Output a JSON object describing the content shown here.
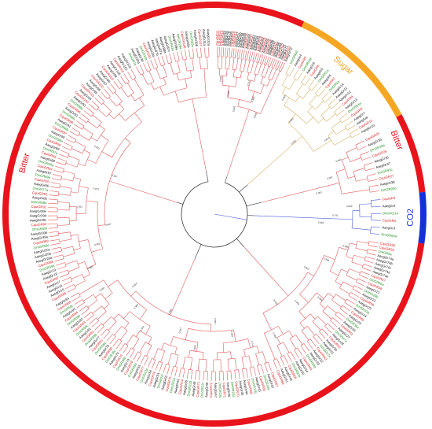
{
  "colors": {
    "bitter": "#e8131b",
    "sugar": "#f5a623",
    "co2": "#1430d8",
    "aedes": "#111111",
    "culex": "#d7191c",
    "drosophila": "#1f8f1f",
    "branch_red": "#e25b5b",
    "branch_sugar": "#d9b36a",
    "branch_co2": "#4a5bd8",
    "branch_dark": "#333333"
  },
  "clades": [
    {
      "name": "Sugar",
      "start": -65,
      "end": -28,
      "color": "#f5a623"
    },
    {
      "name": "Bitter",
      "start": -28,
      "end": -6,
      "color": "#e8131b"
    },
    {
      "name": "CO2",
      "start": -6,
      "end": 8,
      "color": "#1430d8"
    },
    {
      "name": "Bitter",
      "start": 8,
      "end": 295,
      "color": "#e8131b"
    }
  ],
  "leaf_groups": [
    {
      "from": -89,
      "to": -65,
      "count": 34,
      "items": [
        "CquiGR11",
        "CquiGR12",
        "CquiGR13",
        "AaegGr29",
        "AaegGr78",
        "AaegGr79",
        "AaegGr80",
        "CquiGR14",
        "CquiGR15",
        "AaegGr57",
        "AaegGr56",
        "AaegGr58",
        "AaegGr59",
        "CquiGR16",
        "AaegGr60",
        "CquiGR17",
        "AaegGr61",
        "AaegGr62",
        "AaegGr63",
        "CquiGR18",
        "AaegGr64",
        "CquiGR19",
        "AaegGr65",
        "CquiGR20",
        "AaegGr66",
        "AaegGr67",
        "CquiGR21",
        "AaegGr68",
        "AaegGr69",
        "CquiGR22",
        "AaegGr70",
        "AaegGr71",
        "CquiGR23",
        "AaegGr72"
      ]
    },
    {
      "from": -63,
      "to": -29,
      "count": 22,
      "items": [
        "DmGR64f",
        "AaegGr4",
        "CquiGR5",
        "DmGR64e",
        "AaegGr9",
        "CquiGR6",
        "AaegGr5",
        "DmGR61a",
        "AaegGr6",
        "CquiGR7",
        "DmGR5a",
        "AaegGr14",
        "AaegGr11",
        "AaegGr12",
        "CquiGR8",
        "AaegGr13",
        "DmGR64a",
        "CquiGR9",
        "AaegGr7",
        "AaegGr8",
        "CquiGR10",
        "AaegGr10"
      ]
    },
    {
      "from": -26,
      "to": -8,
      "count": 10,
      "items": [
        "CquiGR25",
        "AaegGr35",
        "DmGR39a",
        "CquiGR26",
        "AaegGr36",
        "AaegGr37",
        "DmGR93c",
        "CquiGR27",
        "AaegGr38",
        "DmGR93d"
      ]
    },
    {
      "from": -5,
      "to": 7,
      "count": 6,
      "items": [
        "CquiGR2",
        "AaegGr2",
        "DmGR21a",
        "CquiGR3",
        "AaegGr3",
        "DmGR63a"
      ]
    },
    {
      "from": 10,
      "to": 68,
      "count": 42,
      "items": [
        "CquiGR55",
        "CquiGR56",
        "DmGR8a",
        "AaegGr74a",
        "AaegGr74b",
        "AaegGr74c",
        "AaegGr74d",
        "AaegGr74e",
        "CquiGR57",
        "DmGR66a",
        "CquiGR58",
        "AaegGr21",
        "DmGR28b",
        "AaegGr22",
        "CquiGR59",
        "AaegGr23",
        "DmGR33a",
        "AaegGr24",
        "CquiGR60",
        "AaegGr25",
        "DmGR36a",
        "AaegGr26",
        "CquiGR61",
        "AaegGr27",
        "DmGR47a",
        "AaegGr28",
        "CquiGR62",
        "AaegGr30",
        "AaegGr31",
        "DmGR57a",
        "CquiGR63",
        "AaegGr32",
        "AaegGr33",
        "DmGR59a",
        "CquiGR64",
        "AaegGr34",
        "AaegGr39",
        "DmGR92a",
        "CquiGR65",
        "AaegGr40",
        "AaegGr41",
        "CquiGR66"
      ]
    },
    {
      "from": 70,
      "to": 150,
      "count": 58,
      "items": [
        "CquiGR67",
        "AaegGr42",
        "DmGR10a",
        "CquiGR68",
        "AaegGr43",
        "DmGR10b",
        "CquiGR69",
        "AaegGr44",
        "AaegGr45",
        "CquiGR70",
        "DmGR22a",
        "AaegGr46",
        "CquiGR71",
        "DmGR22b",
        "AaegGr47",
        "CquiGR72",
        "AaegGr48",
        "DmGR22c",
        "CquiGR73",
        "AaegGr49",
        "DmGR22d",
        "AaegGr50",
        "CquiGR74",
        "AaegGr51",
        "DmGR22e",
        "CquiGR75",
        "AaegGr52",
        "DmGR22f",
        "AaegGr53",
        "CquiGR76",
        "AaegGr54",
        "DmGR23a",
        "CquiGR77",
        "AaegGr55",
        "DmGR28a",
        "CquiGR78",
        "AaegGr73",
        "DmGR36b",
        "CquiGR79",
        "AaegGr75",
        "DmGR36c",
        "CquiGR80",
        "AaegGr76",
        "DmGR58a",
        "CquiGR81",
        "AaegGr77",
        "DmGR58b",
        "CquiGR82",
        "AaegGr81",
        "DmGR58c",
        "CquiGR83",
        "AaegGr82",
        "DmGR59b",
        "CquiGR84",
        "AaegGr83",
        "DmGR59c",
        "CquiGR85",
        "AaegGr84"
      ]
    },
    {
      "from": 152,
      "to": 240,
      "count": 62,
      "items": [
        "CquiGR86",
        "AaegGr15",
        "AaegGr16",
        "AaegGr17",
        "CquiGR87",
        "AaegGr18",
        "AaegGr19",
        "DmGR59d",
        "CquiGR88",
        "AaegGr20a",
        "AaegGr20b",
        "AaegGr20c",
        "DmGR59e",
        "CquiGR89",
        "AaegGr39a",
        "AaegGr39b",
        "DmGR59f",
        "CquiGR90",
        "AaegGr39c",
        "AaegGr39d",
        "AaegGr39e",
        "CquiGR91",
        "DmGR68a",
        "AaegGr85",
        "CquiGR92",
        "DmGR77a",
        "AaegGr86",
        "CquiGR93",
        "DmGR89a",
        "AaegGr87",
        "CquiGR94",
        "DmGR94a",
        "AaegGr88",
        "CquiGR95",
        "DmGR97a",
        "AaegGr89",
        "CquiGR96",
        "DmGR98a",
        "AaegGr90",
        "CquiGR97",
        "DmGR98b",
        "AaegGr91",
        "CquiGR98",
        "DmGR98c",
        "AaegGr92",
        "CquiGR99",
        "DmGR98d",
        "AaegGr93",
        "CquiGR100",
        "AaegGr94",
        "CquiGR101",
        "AaegGr95",
        "AaegGr96",
        "CquiGR102",
        "AaegGr97",
        "AaegGr98",
        "CquiGR103",
        "AaegGr99",
        "AaegGr100",
        "CquiGR104",
        "AaegGr101",
        "AaegGr102"
      ]
    },
    {
      "from": 242,
      "to": 268,
      "count": 20,
      "items": [
        "DmGR2a",
        "AaegGr30a",
        "AaegGr34",
        "DmGR32a",
        "CquiGR105",
        "AaegGr33a",
        "AaegGr87b",
        "AaegGr87a",
        "AaegGr88a",
        "AaegGr87c",
        "DmGR43a",
        "AaegGr69a",
        "DmGR28a",
        "CquiGR106",
        "AaegGr65a",
        "DmGR59a",
        "AaegGr30b",
        "CquiGR107",
        "AaegGr31a",
        "AaegGr32a"
      ]
    }
  ],
  "clade_labels": [
    {
      "text": "Sugar",
      "color": "#f5a623",
      "angle": -49
    },
    {
      "text": "Bitter",
      "color": "#e8131b",
      "angle": -22
    },
    {
      "text": "CO2",
      "color": "#1430d8",
      "angle": 1
    },
    {
      "text": "Bitter",
      "color": "#e8131b",
      "angle": 195
    }
  ],
  "bootstrap": [
    "0.981",
    "0.999",
    "0.883",
    "0.717",
    "0.982",
    "0.992",
    "0.964",
    "0.963",
    "0.932",
    "0.874",
    "0.865",
    "0.991",
    "0.997",
    "0.849",
    "0.791",
    "0.964",
    "0.936",
    "0.984",
    "0.827",
    "0.999",
    "0.959",
    "0.902",
    "0.984",
    "0.742",
    "0.891",
    "0.957",
    "0.958",
    "0.947",
    "0.883",
    "0.992",
    "0.984",
    "0.934",
    "0.804",
    "0.885",
    "0.991",
    "0.997",
    "0.961",
    "0.972",
    "0.997",
    "0.993"
  ]
}
